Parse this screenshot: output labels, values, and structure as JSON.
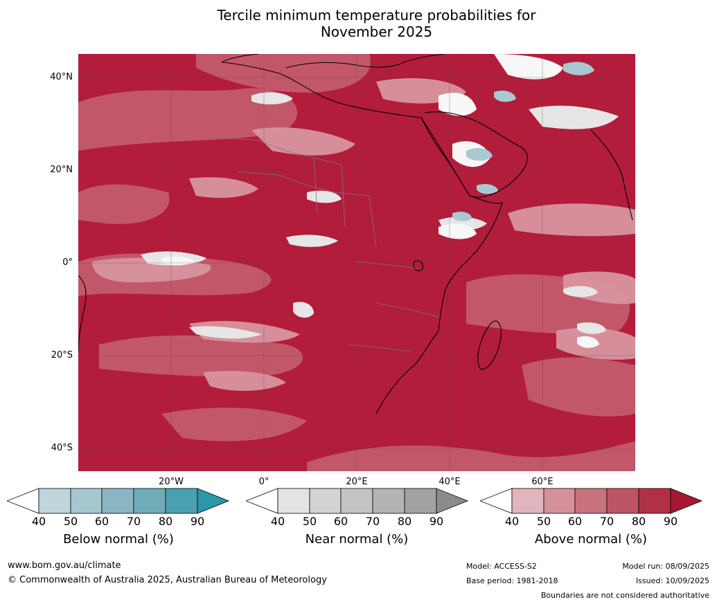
{
  "title": {
    "line1": "Tercile minimum temperature probabilities for",
    "line2": "November 2025"
  },
  "map": {
    "latitude_labels": [
      "40°N",
      "20°N",
      "0°",
      "20°S",
      "40°S"
    ],
    "longitude_labels": [
      "20°W",
      "0°",
      "20°E",
      "40°E",
      "60°E"
    ],
    "colors": {
      "above": [
        "#e0b5bd",
        "#d4919c",
        "#c8727e",
        "#bc5667",
        "#b23046",
        "#a51733"
      ],
      "near": [
        "#e3e3e3",
        "#d3d3d3",
        "#c4c4c4",
        "#b4b4b4",
        "#a2a2a2",
        "#8b8b8b"
      ],
      "below": [
        "#bfd5dc",
        "#a6c7cf",
        "#8ab6c1",
        "#6facb8",
        "#4aa0b0",
        "#2b97aa"
      ]
    }
  },
  "colorbars": [
    {
      "label": "Below normal (%)",
      "ticks": [
        "40",
        "50",
        "60",
        "70",
        "80",
        "90"
      ],
      "colors": [
        "#bfd5dc",
        "#a6c7cf",
        "#8ab6c1",
        "#6facb8",
        "#4aa0b0",
        "#2b97aa"
      ]
    },
    {
      "label": "Near normal (%)",
      "ticks": [
        "40",
        "50",
        "60",
        "70",
        "80",
        "90"
      ],
      "colors": [
        "#e3e3e3",
        "#d3d3d3",
        "#c4c4c4",
        "#b4b4b4",
        "#a2a2a2",
        "#8b8b8b"
      ]
    },
    {
      "label": "Above normal (%)",
      "ticks": [
        "40",
        "50",
        "60",
        "70",
        "80",
        "90"
      ],
      "colors": [
        "#e0b5bd",
        "#d4919c",
        "#c8727e",
        "#bc5667",
        "#b23046",
        "#a51733"
      ]
    }
  ],
  "footer": {
    "website": "www.bom.gov.au/climate",
    "copyright": "© Commonwealth of Australia 2025, Australian Bureau of Meteorology",
    "model": "Model: ACCESS-S2",
    "base_period": "Base period: 1981-2018",
    "model_run": "Model run: 08/09/2025",
    "issued": "Issued: 10/09/2025",
    "boundaries_note": "Boundaries are not considered authoritative"
  }
}
